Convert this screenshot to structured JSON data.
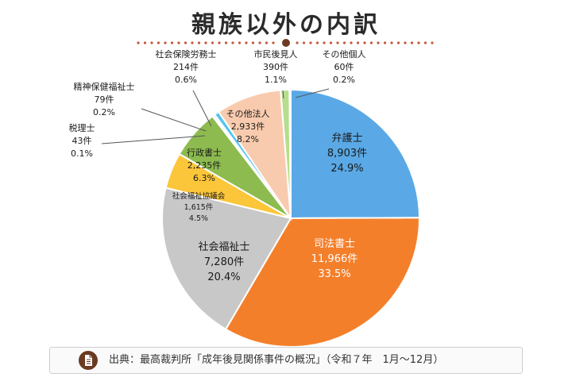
{
  "header": {
    "title": "親族以外の内訳"
  },
  "source": {
    "text": "出典：最高裁判所「成年後見関係事件の概況」（令和７年　1月～12月）"
  },
  "chart_data": {
    "type": "pie",
    "title": "親族以外の内訳",
    "slices": [
      {
        "name": "弁護士",
        "value": 8903,
        "value_label": "8,903件",
        "percent": "24.9%",
        "color": "#5aa9e6"
      },
      {
        "name": "司法書士",
        "value": 11966,
        "value_label": "11,966件",
        "percent": "33.5%",
        "color": "#f47f2b"
      },
      {
        "name": "社会福祉士",
        "value": 7280,
        "value_label": "7,280件",
        "percent": "20.4%",
        "color": "#c8c8c8"
      },
      {
        "name": "社会福祉協議会",
        "value": 1615,
        "value_label": "1,615件",
        "percent": "4.5%",
        "color": "#fcc63a"
      },
      {
        "name": "行政書士",
        "value": 2235,
        "value_label": "2,235件",
        "percent": "6.3%",
        "color": "#8dbb4f"
      },
      {
        "name": "税理士",
        "value": 43,
        "value_label": "43件",
        "percent": "0.1%",
        "color": "#9a7fb8"
      },
      {
        "name": "精神保健福祉士",
        "value": 79,
        "value_label": "79件",
        "percent": "0.2%",
        "color": "#e793b4"
      },
      {
        "name": "社会保険労務士",
        "value": 214,
        "value_label": "214件",
        "percent": "0.6%",
        "color": "#56c4ee"
      },
      {
        "name": "その他法人",
        "value": 2933,
        "value_label": "2,933件",
        "percent": "8.2%",
        "color": "#f9cbae"
      },
      {
        "name": "市民後見人",
        "value": 390,
        "value_label": "390件",
        "percent": "1.1%",
        "color": "#b7dd8e"
      },
      {
        "name": "その他個人",
        "value": 60,
        "value_label": "60件",
        "percent": "0.2%",
        "color": "#2a4e9a"
      }
    ],
    "legend": "none"
  },
  "colors": {
    "title_dots": "#c4573a",
    "accent_brown": "#6b3a22"
  }
}
